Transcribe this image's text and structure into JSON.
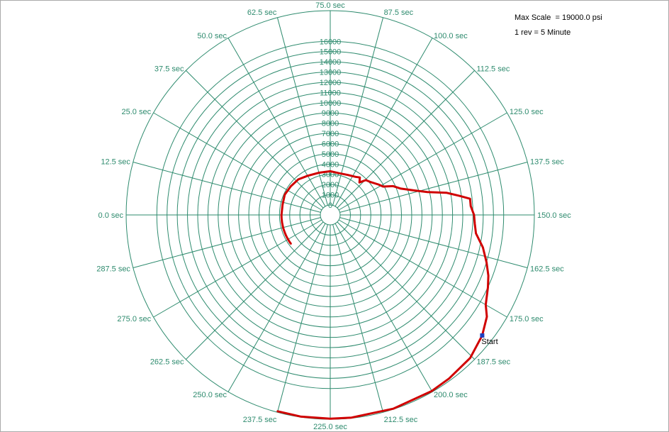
{
  "info": {
    "max_scale": "Max Scale  = 19000.0 psi",
    "rev": "1 rev = 5 Minute"
  },
  "chart_data": {
    "type": "polar-line",
    "radial_unit": "psi",
    "max_scale": 19000,
    "revolution_seconds": 300,
    "radial_ticks": [
      0,
      1000,
      2000,
      3000,
      4000,
      5000,
      6000,
      7000,
      8000,
      9000,
      10000,
      11000,
      12000,
      13000,
      14000,
      15000,
      16000
    ],
    "angle_ticks": [
      {
        "sec": 0,
        "label": "0.0 sec"
      },
      {
        "sec": 12.5,
        "label": "12.5 sec"
      },
      {
        "sec": 25,
        "label": "25.0 sec"
      },
      {
        "sec": 37.5,
        "label": "37.5 sec"
      },
      {
        "sec": 50,
        "label": "50.0 sec"
      },
      {
        "sec": 62.5,
        "label": "62.5 sec"
      },
      {
        "sec": 75,
        "label": "75.0 sec"
      },
      {
        "sec": 87.5,
        "label": "87.5 sec"
      },
      {
        "sec": 100,
        "label": "100.0 sec"
      },
      {
        "sec": 112.5,
        "label": "112.5 sec"
      },
      {
        "sec": 125,
        "label": "125.0 sec"
      },
      {
        "sec": 137.5,
        "label": "137.5 sec"
      },
      {
        "sec": 150,
        "label": "150.0 sec"
      },
      {
        "sec": 162.5,
        "label": "162.5 sec"
      },
      {
        "sec": 175,
        "label": "175.0 sec"
      },
      {
        "sec": 187.5,
        "label": "187.5 sec"
      },
      {
        "sec": 200,
        "label": "200.0 sec"
      },
      {
        "sec": 212.5,
        "label": "212.5 sec"
      },
      {
        "sec": 225,
        "label": "225.0 sec"
      },
      {
        "sec": 237.5,
        "label": "237.5 sec"
      },
      {
        "sec": 250,
        "label": "250.0 sec"
      },
      {
        "sec": 262.5,
        "label": "262.5 sec"
      },
      {
        "sec": 275,
        "label": "275.0 sec"
      },
      {
        "sec": 287.5,
        "label": "287.5 sec"
      }
    ],
    "start_label": "Start",
    "grid_color": "#2e8b6e",
    "series_color": "#d00000",
    "start_marker_color": "#1f3fbf",
    "series": [
      {
        "points": [
          [
            182.0,
            18000
          ],
          [
            177.5,
            17300
          ],
          [
            175.0,
            16600
          ],
          [
            170.5,
            16000
          ],
          [
            167.5,
            15600
          ],
          [
            164.0,
            15000
          ],
          [
            160.0,
            14300
          ],
          [
            156.0,
            13400
          ],
          [
            153.0,
            13200
          ],
          [
            150.0,
            13100
          ],
          [
            147.0,
            12800
          ],
          [
            144.5,
            12800
          ],
          [
            143.0,
            11800
          ],
          [
            141.0,
            10600
          ],
          [
            139.0,
            8800
          ],
          [
            136.5,
            7600
          ],
          [
            133.0,
            6400
          ],
          [
            129.5,
            5800
          ],
          [
            126.5,
            4900
          ],
          [
            123.0,
            4600
          ],
          [
            117.0,
            4100
          ],
          [
            113.0,
            3900
          ],
          [
            110.0,
            3300
          ],
          [
            107.0,
            3700
          ],
          [
            103.0,
            3500
          ],
          [
            95.0,
            3300
          ],
          [
            85.0,
            3200
          ],
          [
            75.0,
            3300
          ],
          [
            62.5,
            3300
          ],
          [
            50.0,
            3450
          ],
          [
            40.0,
            3700
          ],
          [
            30.0,
            3800
          ],
          [
            20.0,
            3900
          ],
          [
            10.0,
            3800
          ],
          [
            0.0,
            3800
          ],
          [
            -1.0,
            3800
          ],
          [
            -3.5,
            3800
          ],
          [
            -5.5,
            3800
          ],
          [
            -7.5,
            3800
          ],
          [
            -9.5,
            3800
          ],
          [
            -11.0,
            3800
          ],
          [
            -12.0,
            3800
          ],
          [
            -12.5,
            3800
          ],
          [
            -13.0,
            3800
          ],
          [
            -13.5,
            3800
          ],
          [
            -14.0,
            3800
          ],
          [
            -14.5,
            3800
          ],
          [
            -15.0,
            3800
          ],
          [
            -15.5,
            3800
          ],
          [
            -16.0,
            3800
          ],
          [
            -16.5,
            3800
          ],
          [
            -17.0,
            3800
          ],
          [
            -17.5,
            3800
          ],
          [
            -18.0,
            3800
          ],
          [
            -18.5,
            3800
          ],
          [
            -19.0,
            3800
          ],
          [
            -19.5,
            3800
          ],
          [
            -20.0,
            3800
          ],
          [
            -20.5,
            3800
          ],
          [
            -21.0,
            3800
          ],
          [
            -22.0,
            3800
          ],
          [
            -23.0,
            3800
          ],
          [
            -24.0,
            3800
          ],
          [
            -25.0,
            3800
          ],
          [
            -26.0,
            3800
          ],
          [
            -27.0,
            3800
          ],
          [
            -28.0,
            3800
          ],
          [
            -29.0,
            3800
          ],
          [
            -30.0,
            3800
          ]
        ]
      },
      {
        "points": [
          [
            182.0,
            18000
          ],
          [
            188.0,
            18600
          ],
          [
            195.0,
            18800
          ],
          [
            200.0,
            18900
          ],
          [
            210.0,
            18950
          ],
          [
            220.0,
            18950
          ],
          [
            225.0,
            18950
          ],
          [
            232.0,
            18950
          ],
          [
            237.5,
            18900
          ]
        ]
      }
    ]
  }
}
